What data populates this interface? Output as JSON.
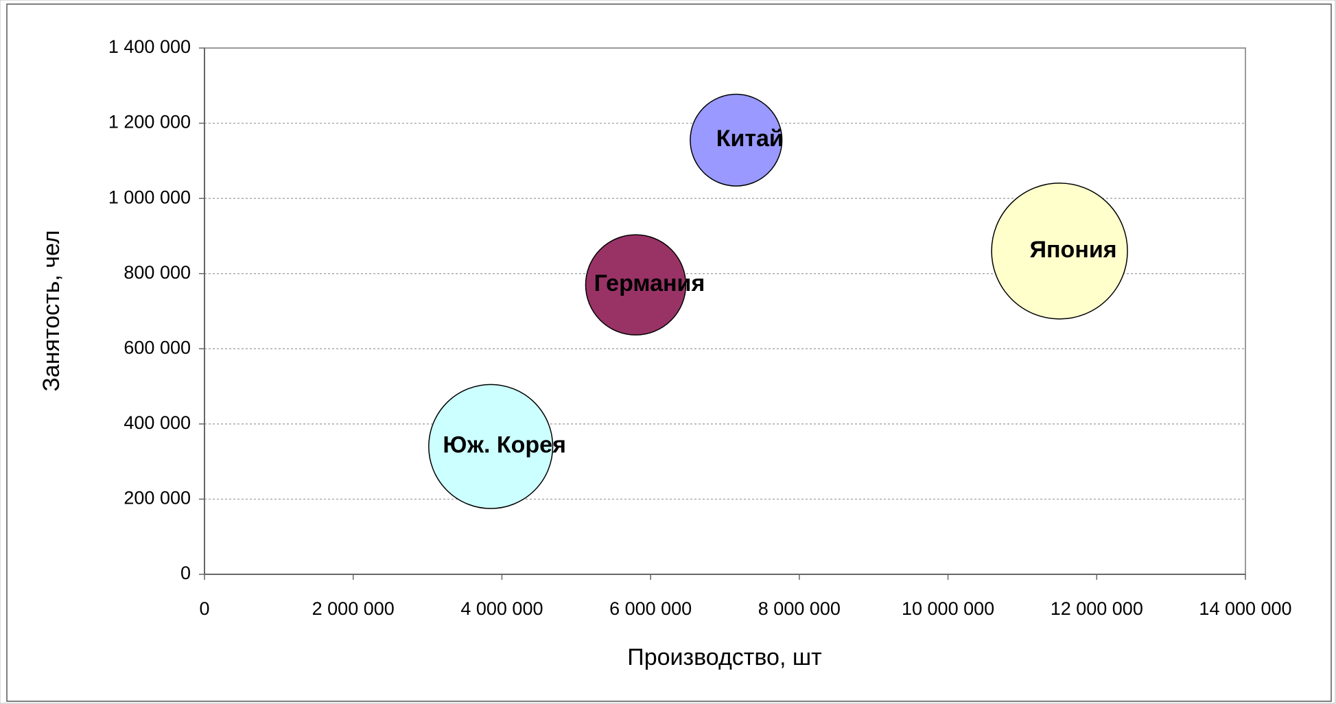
{
  "chart_data": {
    "type": "bubble",
    "labels": [
      "Китай",
      "Япония",
      "Германия",
      "Юж. Корея"
    ],
    "x": [
      7150000,
      11500000,
      5800000,
      3850000
    ],
    "values": [
      1155000,
      860000,
      770000,
      340000
    ],
    "sizes": [
      45.6,
      100,
      54.4,
      83.3
    ],
    "colors": [
      "#9999ff",
      "#ffffcc",
      "#993366",
      "#ccffff"
    ],
    "x_label": "Производство, шт",
    "y_label": "Занятость, чел",
    "xlim": [
      0,
      14000000
    ],
    "xticks": [
      0,
      {
        "value": 2000000,
        "label": "2 000 000"
      },
      {
        "value": 4000000,
        "label": "4 000 000"
      },
      {
        "value": 6000000,
        "label": "6 000 000"
      },
      {
        "value": 8000000,
        "label": "8 000 000"
      },
      {
        "value": 10000000,
        "label": "10 000 000"
      },
      {
        "value": 12000000,
        "label": "12 000 000"
      },
      {
        "value": 14000000,
        "label": "14 000 000"
      }
    ],
    "ylim": [
      0,
      1400000
    ],
    "yticks": [
      0,
      {
        "value": 200000,
        "label": "200 000"
      },
      {
        "value": 400000,
        "label": "400 000"
      },
      {
        "value": 600000,
        "label": "600 000"
      },
      {
        "value": 800000,
        "label": "800 000"
      },
      {
        "value": 1000000,
        "label": "1 000 000"
      },
      {
        "value": 1200000,
        "label": "1 200 000"
      },
      {
        "value": 1400000,
        "label": "1 400 000"
      }
    ],
    "grid": true
  }
}
